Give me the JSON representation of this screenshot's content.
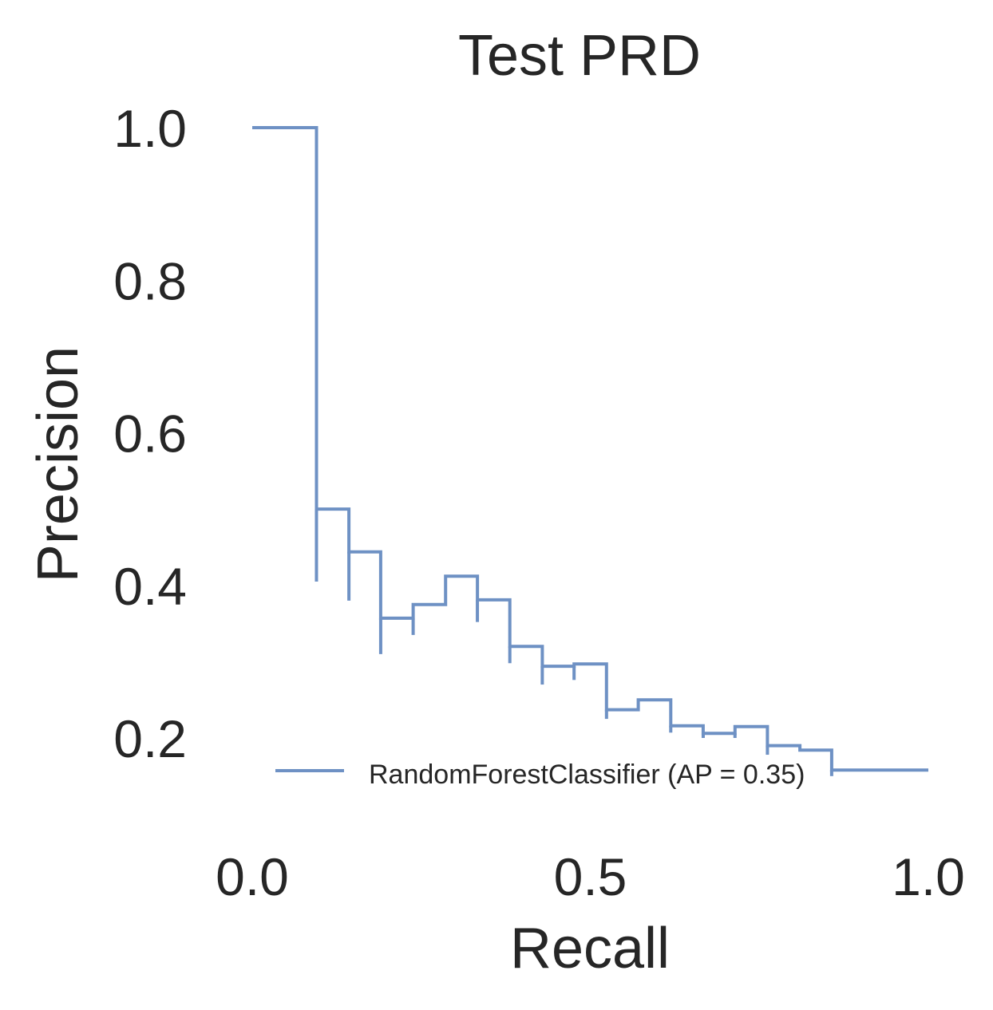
{
  "chart_data": {
    "type": "line",
    "title": "Test PRD",
    "xlabel": "Recall",
    "ylabel": "Precision",
    "xlim": [
      -0.05,
      1.05
    ],
    "ylim": [
      0.1,
      1.05
    ],
    "xticks": [
      0.0,
      0.5,
      1.0
    ],
    "xtick_labels": [
      "0.0",
      "0.5",
      "1.0"
    ],
    "yticks": [
      0.2,
      0.4,
      0.6,
      0.8,
      1.0
    ],
    "ytick_labels": [
      "0.2",
      "0.4",
      "0.6",
      "0.8",
      "1.0"
    ],
    "grid": false,
    "legend": {
      "position": "lower right",
      "entries": [
        "RandomForestClassifier (AP = 0.35)"
      ]
    },
    "series": [
      {
        "name": "RandomForestClassifier (AP = 0.35)",
        "color": "#6e91c4",
        "step": "post",
        "x": [
          0.0,
          0.095,
          0.095,
          0.143,
          0.143,
          0.19,
          0.19,
          0.238,
          0.238,
          0.286,
          0.286,
          0.333,
          0.333,
          0.381,
          0.381,
          0.429,
          0.429,
          0.476,
          0.476,
          0.524,
          0.524,
          0.571,
          0.571,
          0.619,
          0.619,
          0.667,
          0.667,
          0.714,
          0.714,
          0.762,
          0.762,
          0.81,
          0.81,
          0.857,
          0.857,
          1.0
        ],
        "y": [
          1.0,
          1.0,
          0.5,
          0.5,
          0.444,
          0.444,
          0.357,
          0.357,
          0.375,
          0.375,
          0.412,
          0.412,
          0.381,
          0.381,
          0.32,
          0.32,
          0.294,
          0.294,
          0.297,
          0.297,
          0.237,
          0.237,
          0.25,
          0.25,
          0.216,
          0.216,
          0.206,
          0.206,
          0.215,
          0.215,
          0.19,
          0.19,
          0.184,
          0.184,
          0.158,
          0.158
        ],
        "drops": [
          {
            "x": 0.095,
            "y": [
              0.5,
              0.405
            ]
          },
          {
            "x": 0.143,
            "y": [
              0.444,
              0.38
            ]
          },
          {
            "x": 0.19,
            "y": [
              0.357,
              0.31
            ]
          },
          {
            "x": 0.238,
            "y": [
              0.357,
              0.335
            ]
          },
          {
            "x": 0.333,
            "y": [
              0.381,
              0.352
            ]
          },
          {
            "x": 0.381,
            "y": [
              0.32,
              0.298
            ]
          },
          {
            "x": 0.429,
            "y": [
              0.294,
              0.27
            ]
          },
          {
            "x": 0.476,
            "y": [
              0.294,
              0.276
            ]
          },
          {
            "x": 0.524,
            "y": [
              0.237,
              0.225
            ]
          },
          {
            "x": 0.619,
            "y": [
              0.216,
              0.207
            ]
          },
          {
            "x": 0.667,
            "y": [
              0.206,
              0.2
            ]
          },
          {
            "x": 0.714,
            "y": [
              0.206,
              0.2
            ]
          },
          {
            "x": 0.762,
            "y": [
              0.19,
              0.178
            ]
          },
          {
            "x": 0.857,
            "y": [
              0.158,
              0.15
            ]
          }
        ]
      }
    ]
  }
}
